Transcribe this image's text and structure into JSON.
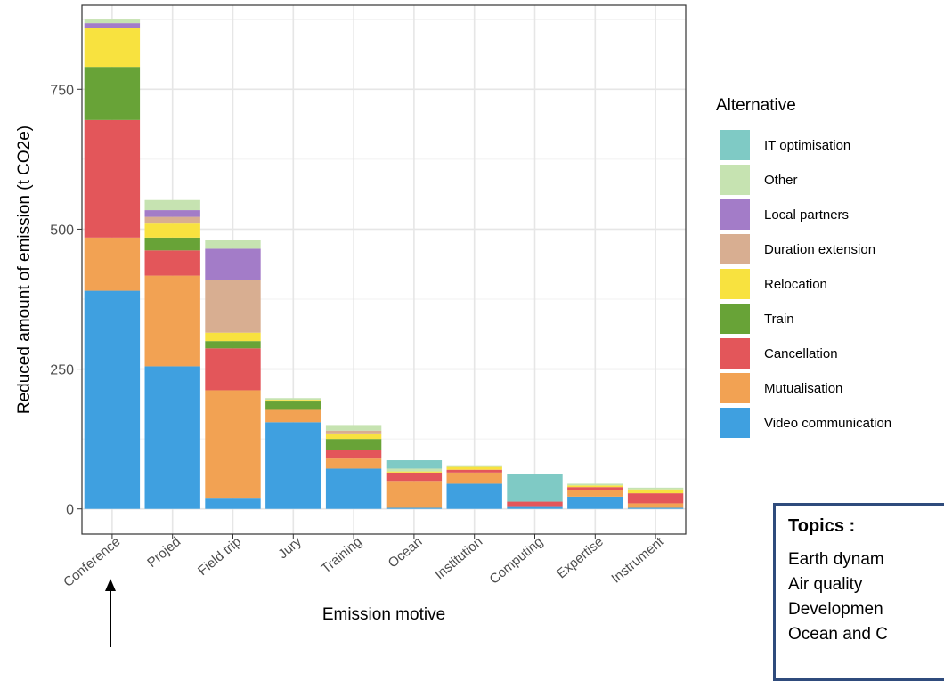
{
  "chart_data": {
    "type": "bar",
    "stacked": true,
    "xlabel": "Emission motive",
    "ylabel": "Reduced amount of emission (t CO2e)",
    "ylim": [
      -45,
      900
    ],
    "y_ticks": [
      0,
      250,
      500,
      750
    ],
    "grid": true,
    "legend_title": "Alternative",
    "legend_position": "right",
    "categories": [
      "Conference",
      "Projed",
      "Field trip",
      "Jury",
      "Training",
      "Ocean",
      "Institution",
      "Computing",
      "Expertise",
      "Instrument"
    ],
    "series": [
      {
        "name": "Video communication",
        "color": "#3fa0e0",
        "values": [
          390,
          255,
          20,
          155,
          72,
          2,
          45,
          5,
          22,
          2
        ]
      },
      {
        "name": "Mutualisation",
        "color": "#f2a253",
        "values": [
          95,
          162,
          192,
          22,
          18,
          48,
          20,
          0,
          12,
          8
        ]
      },
      {
        "name": "Cancellation",
        "color": "#e3565a",
        "values": [
          210,
          45,
          75,
          0,
          15,
          15,
          5,
          8,
          5,
          18
        ]
      },
      {
        "name": "Train",
        "color": "#68a337",
        "values": [
          95,
          23,
          13,
          15,
          20,
          0,
          0,
          0,
          0,
          0
        ]
      },
      {
        "name": "Relocation",
        "color": "#f8e23f",
        "values": [
          70,
          25,
          15,
          3,
          10,
          2,
          5,
          0,
          3,
          7
        ]
      },
      {
        "name": "Duration extension",
        "color": "#d8ae91",
        "values": [
          0,
          12,
          95,
          0,
          5,
          0,
          0,
          0,
          0,
          0
        ]
      },
      {
        "name": "Local partners",
        "color": "#a37cc8",
        "values": [
          8,
          12,
          55,
          0,
          0,
          0,
          0,
          0,
          0,
          0
        ]
      },
      {
        "name": "Other",
        "color": "#c6e3b1",
        "values": [
          8,
          18,
          15,
          3,
          10,
          5,
          3,
          0,
          3,
          3
        ]
      },
      {
        "name": "IT optimisation",
        "color": "#7fcac5",
        "values": [
          0,
          0,
          0,
          0,
          0,
          15,
          0,
          50,
          0,
          0
        ]
      }
    ]
  },
  "topics": {
    "title": "Topics :",
    "items": [
      "Earth dynam",
      "Air quality",
      "Developmen",
      "Ocean and C"
    ]
  },
  "arrow": {
    "color": "#000000"
  }
}
